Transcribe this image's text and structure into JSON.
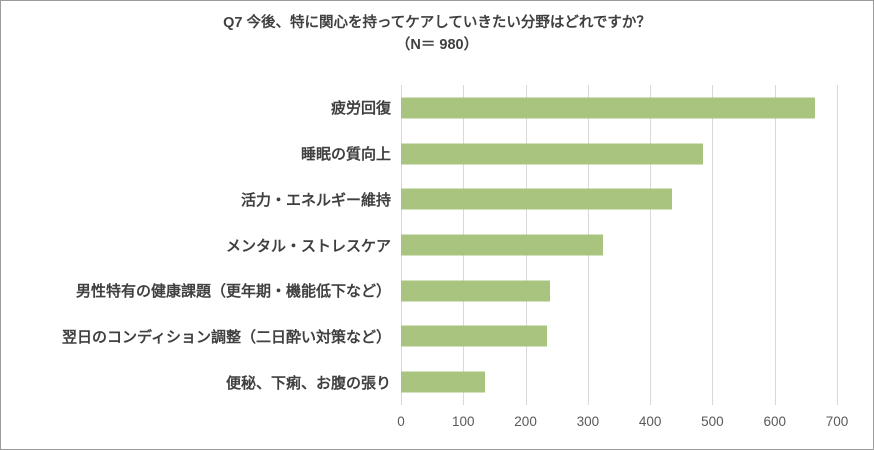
{
  "chart_data": {
    "type": "bar",
    "orientation": "horizontal",
    "title": "Q7 今後、特に関心を持ってケアしていきたい分野はどれですか？",
    "subtitle": "（N＝ 980）",
    "categories": [
      "疲労回復",
      "睡眠の質向上",
      "活力・エネルギー維持",
      "メンタル・ストレスケア",
      "男性特有の健康課題（更年期・機能低下など）",
      "翌日のコンディション調整（二日酔い対策など）",
      "便秘、下痢、お腹の張り"
    ],
    "values": [
      665,
      485,
      435,
      325,
      240,
      235,
      135
    ],
    "xlim": [
      0,
      700
    ],
    "xticks": [
      0,
      100,
      200,
      300,
      400,
      500,
      600,
      700
    ],
    "bar_color": "#a9c47f",
    "grid": true,
    "legend_position": "none",
    "text_color": "#404040",
    "tick_color": "#595959",
    "gridline_color": "#d9d9d9"
  }
}
